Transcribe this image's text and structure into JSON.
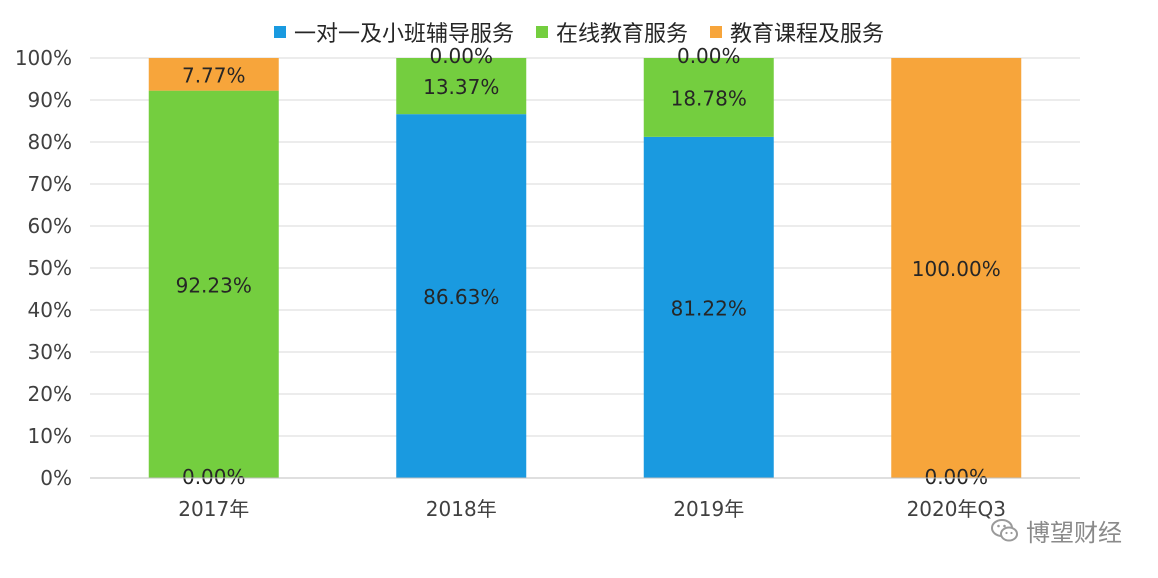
{
  "colors": {
    "一对一及小班辅导服务": "#1A9AE0",
    "在线教育服务": "#74CE3F",
    "教育课程及服务": "#F7A53B",
    "grid": "#D9D9D9",
    "axis_text": "#404040"
  },
  "watermark": {
    "text": "博望财经",
    "icon": "wechat-bubble-icon"
  },
  "chart_data": {
    "type": "bar",
    "stacked": true,
    "percent": true,
    "categories": [
      "2017年",
      "2018年",
      "2019年",
      "2020年Q3"
    ],
    "series": [
      {
        "name": "一对一及小班辅导服务",
        "values": [
          0.0,
          86.63,
          81.22,
          0.0
        ],
        "labels": [
          "0.00%",
          "86.63%",
          "81.22%",
          "0.00%"
        ]
      },
      {
        "name": "在线教育服务",
        "values": [
          92.23,
          13.37,
          18.78,
          0.0
        ],
        "labels": [
          "92.23%",
          "13.37%",
          "18.78%",
          ""
        ]
      },
      {
        "name": "教育课程及服务",
        "values": [
          7.77,
          0.0,
          0.0,
          100.0
        ],
        "labels": [
          "7.77%",
          "0.00%",
          "0.00%",
          "100.00%"
        ]
      }
    ],
    "ylim": [
      0,
      100
    ],
    "yticks": [
      "0%",
      "10%",
      "20%",
      "30%",
      "40%",
      "50%",
      "60%",
      "70%",
      "80%",
      "90%",
      "100%"
    ],
    "grid": true,
    "legend_position": "top",
    "title": "",
    "xlabel": "",
    "ylabel": ""
  }
}
